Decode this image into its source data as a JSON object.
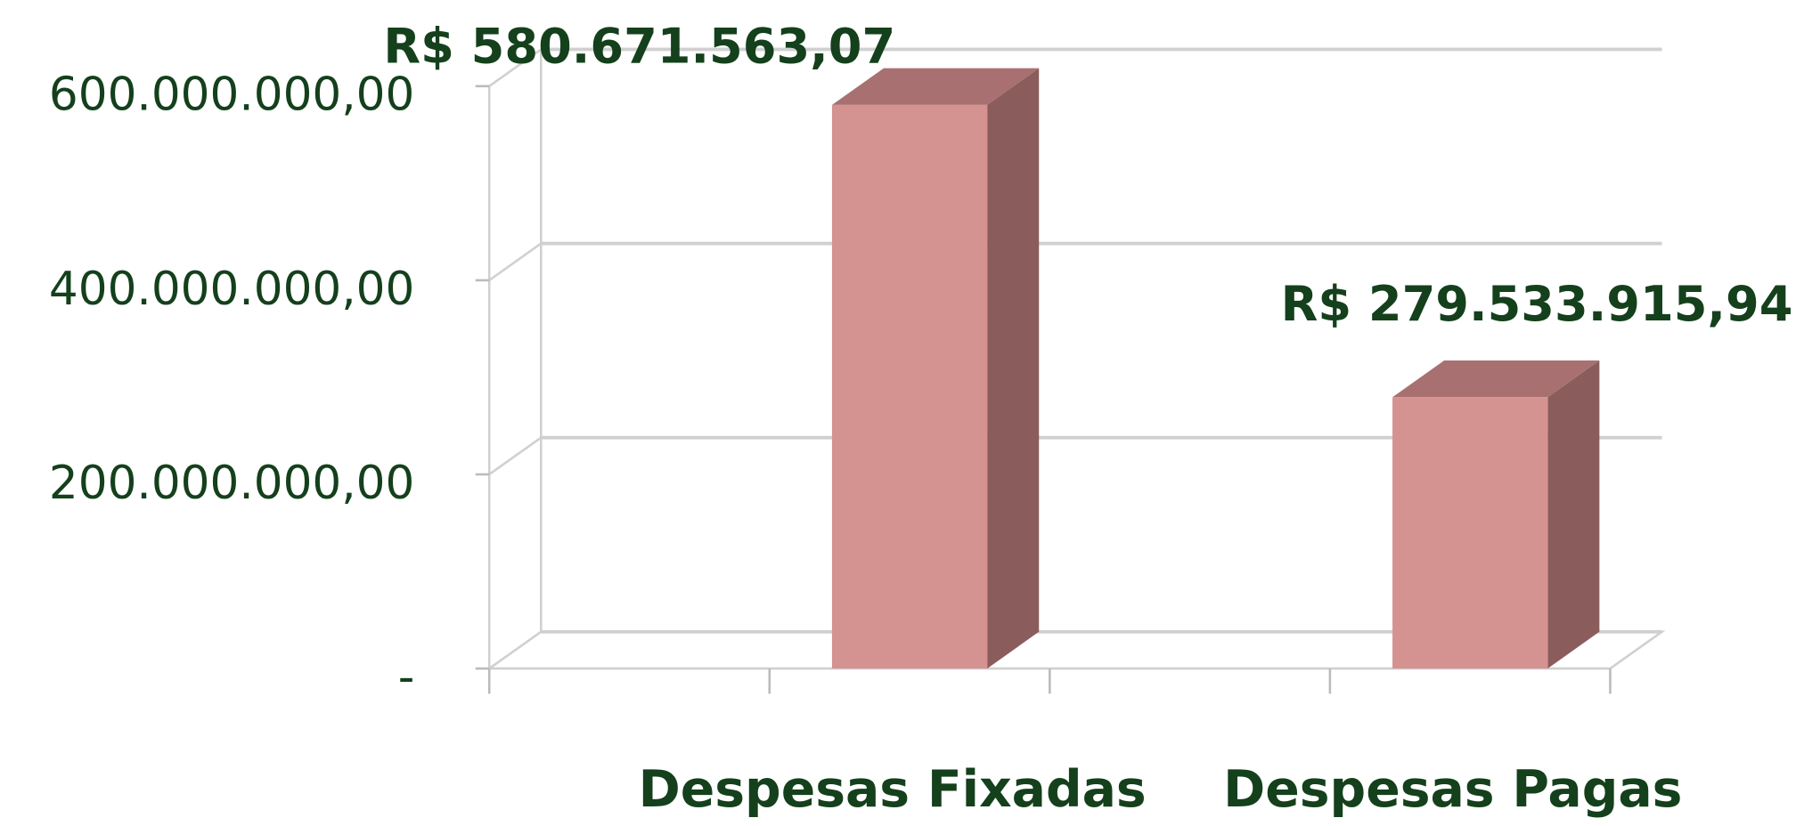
{
  "chart_data": {
    "type": "bar3d",
    "categories": [
      "Despesas Fixadas",
      "Despesas Pagas"
    ],
    "values": [
      580671563.07,
      279533915.94
    ],
    "value_labels": [
      "R$ 580.671.563,07",
      "R$ 279.533.915,94"
    ],
    "color": "#d49290",
    "ylim": [
      0,
      600000000
    ],
    "yticks": [
      {
        "value": 0,
        "label": "-"
      },
      {
        "value": 200000000,
        "label": "200.000.000,00"
      },
      {
        "value": 400000000,
        "label": "400.000.000,00"
      },
      {
        "value": 600000000,
        "label": "600.000.000,00"
      }
    ],
    "grid": true
  }
}
